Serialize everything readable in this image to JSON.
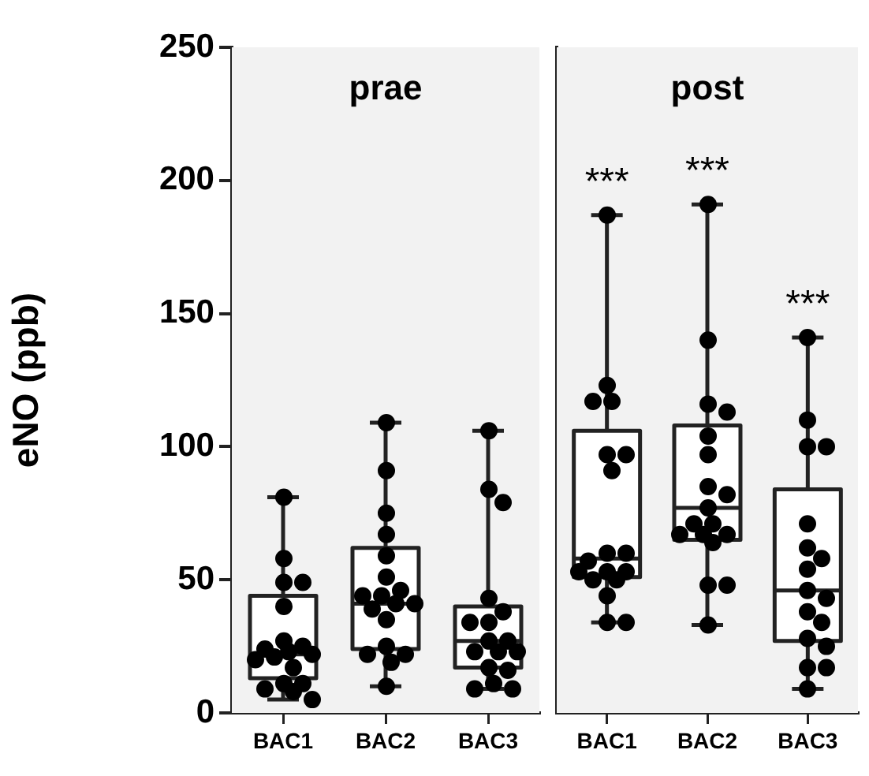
{
  "chart_data": [
    {
      "type": "box",
      "title": "prae",
      "ylabel": "eNO (ppb)",
      "categories": [
        "BAC1",
        "BAC2",
        "BAC3"
      ],
      "ylim": [
        0,
        250
      ],
      "yticks": [
        0,
        50,
        100,
        150,
        200,
        250
      ],
      "grid": false,
      "legend": false,
      "marker": "circle",
      "boxes": [
        {
          "low": 5,
          "q1": 13,
          "median": 22,
          "q3": 44,
          "high": 81
        },
        {
          "low": 10,
          "q1": 24,
          "median": 41,
          "q3": 62,
          "high": 109
        },
        {
          "low": 9,
          "q1": 17,
          "median": 27,
          "q3": 40,
          "high": 106
        }
      ],
      "series": [
        {
          "type": "scatter",
          "color": "#000000",
          "x": [
            "BAC1",
            "BAC1",
            "BAC1",
            "BAC1",
            "BAC1",
            "BAC1",
            "BAC1",
            "BAC1",
            "BAC1",
            "BAC1",
            "BAC1",
            "BAC1",
            "BAC1",
            "BAC1",
            "BAC1",
            "BAC1",
            "BAC1",
            "BAC1",
            "BAC2",
            "BAC2",
            "BAC2",
            "BAC2",
            "BAC2",
            "BAC2",
            "BAC2",
            "BAC2",
            "BAC2",
            "BAC2",
            "BAC2",
            "BAC2",
            "BAC2",
            "BAC2",
            "BAC2",
            "BAC2",
            "BAC2",
            "BAC2",
            "BAC3",
            "BAC3",
            "BAC3",
            "BAC3",
            "BAC3",
            "BAC3",
            "BAC3",
            "BAC3",
            "BAC3",
            "BAC3",
            "BAC3",
            "BAC3",
            "BAC3",
            "BAC3",
            "BAC3",
            "BAC3",
            "BAC3"
          ],
          "values": [
            81,
            58,
            49,
            49,
            40,
            27,
            25,
            24,
            23,
            22,
            21,
            20,
            17,
            11,
            11,
            9,
            8,
            5,
            109,
            91,
            75,
            67,
            59,
            51,
            46,
            44,
            44,
            41,
            41,
            39,
            35,
            25,
            22,
            22,
            19,
            10,
            106,
            84,
            79,
            43,
            38,
            34,
            34,
            27,
            27,
            23,
            23,
            23,
            17,
            16,
            11,
            9,
            9
          ]
        }
      ]
    },
    {
      "type": "box",
      "title": "post",
      "categories": [
        "BAC1",
        "BAC2",
        "BAC3"
      ],
      "ylim": [
        0,
        250
      ],
      "yticks": [
        0,
        50,
        100,
        150,
        200,
        250
      ],
      "tick_labels": "x",
      "grid": false,
      "legend": false,
      "marker": "circle",
      "boxes": [
        {
          "low": 34,
          "q1": 51,
          "median": 58,
          "q3": 106,
          "high": 187
        },
        {
          "low": 33,
          "q1": 65,
          "median": 77,
          "q3": 108,
          "high": 191
        },
        {
          "low": 9,
          "q1": 27,
          "median": 46,
          "q3": 84,
          "high": 141
        }
      ],
      "series": [
        {
          "type": "scatter",
          "color": "#000000",
          "x": [
            "BAC1",
            "BAC1",
            "BAC1",
            "BAC1",
            "BAC1",
            "BAC1",
            "BAC1",
            "BAC1",
            "BAC1",
            "BAC1",
            "BAC1",
            "BAC1",
            "BAC1",
            "BAC1",
            "BAC1",
            "BAC1",
            "BAC1",
            "BAC1",
            "BAC2",
            "BAC2",
            "BAC2",
            "BAC2",
            "BAC2",
            "BAC2",
            "BAC2",
            "BAC2",
            "BAC2",
            "BAC2",
            "BAC2",
            "BAC2",
            "BAC2",
            "BAC2",
            "BAC2",
            "BAC2",
            "BAC2",
            "BAC2",
            "BAC3",
            "BAC3",
            "BAC3",
            "BAC3",
            "BAC3",
            "BAC3",
            "BAC3",
            "BAC3",
            "BAC3",
            "BAC3",
            "BAC3",
            "BAC3",
            "BAC3",
            "BAC3",
            "BAC3",
            "BAC3",
            "BAC3"
          ],
          "values": [
            187,
            123,
            117,
            117,
            97,
            97,
            91,
            60,
            60,
            57,
            53,
            53,
            53,
            50,
            50,
            44,
            34,
            34,
            191,
            140,
            116,
            113,
            104,
            97,
            85,
            82,
            77,
            71,
            71,
            67,
            67,
            67,
            64,
            48,
            48,
            33,
            141,
            110,
            100,
            100,
            71,
            62,
            58,
            54,
            46,
            43,
            38,
            34,
            28,
            25,
            17,
            17,
            9
          ]
        }
      ],
      "annotations": [
        "***",
        "***",
        "***"
      ]
    }
  ]
}
